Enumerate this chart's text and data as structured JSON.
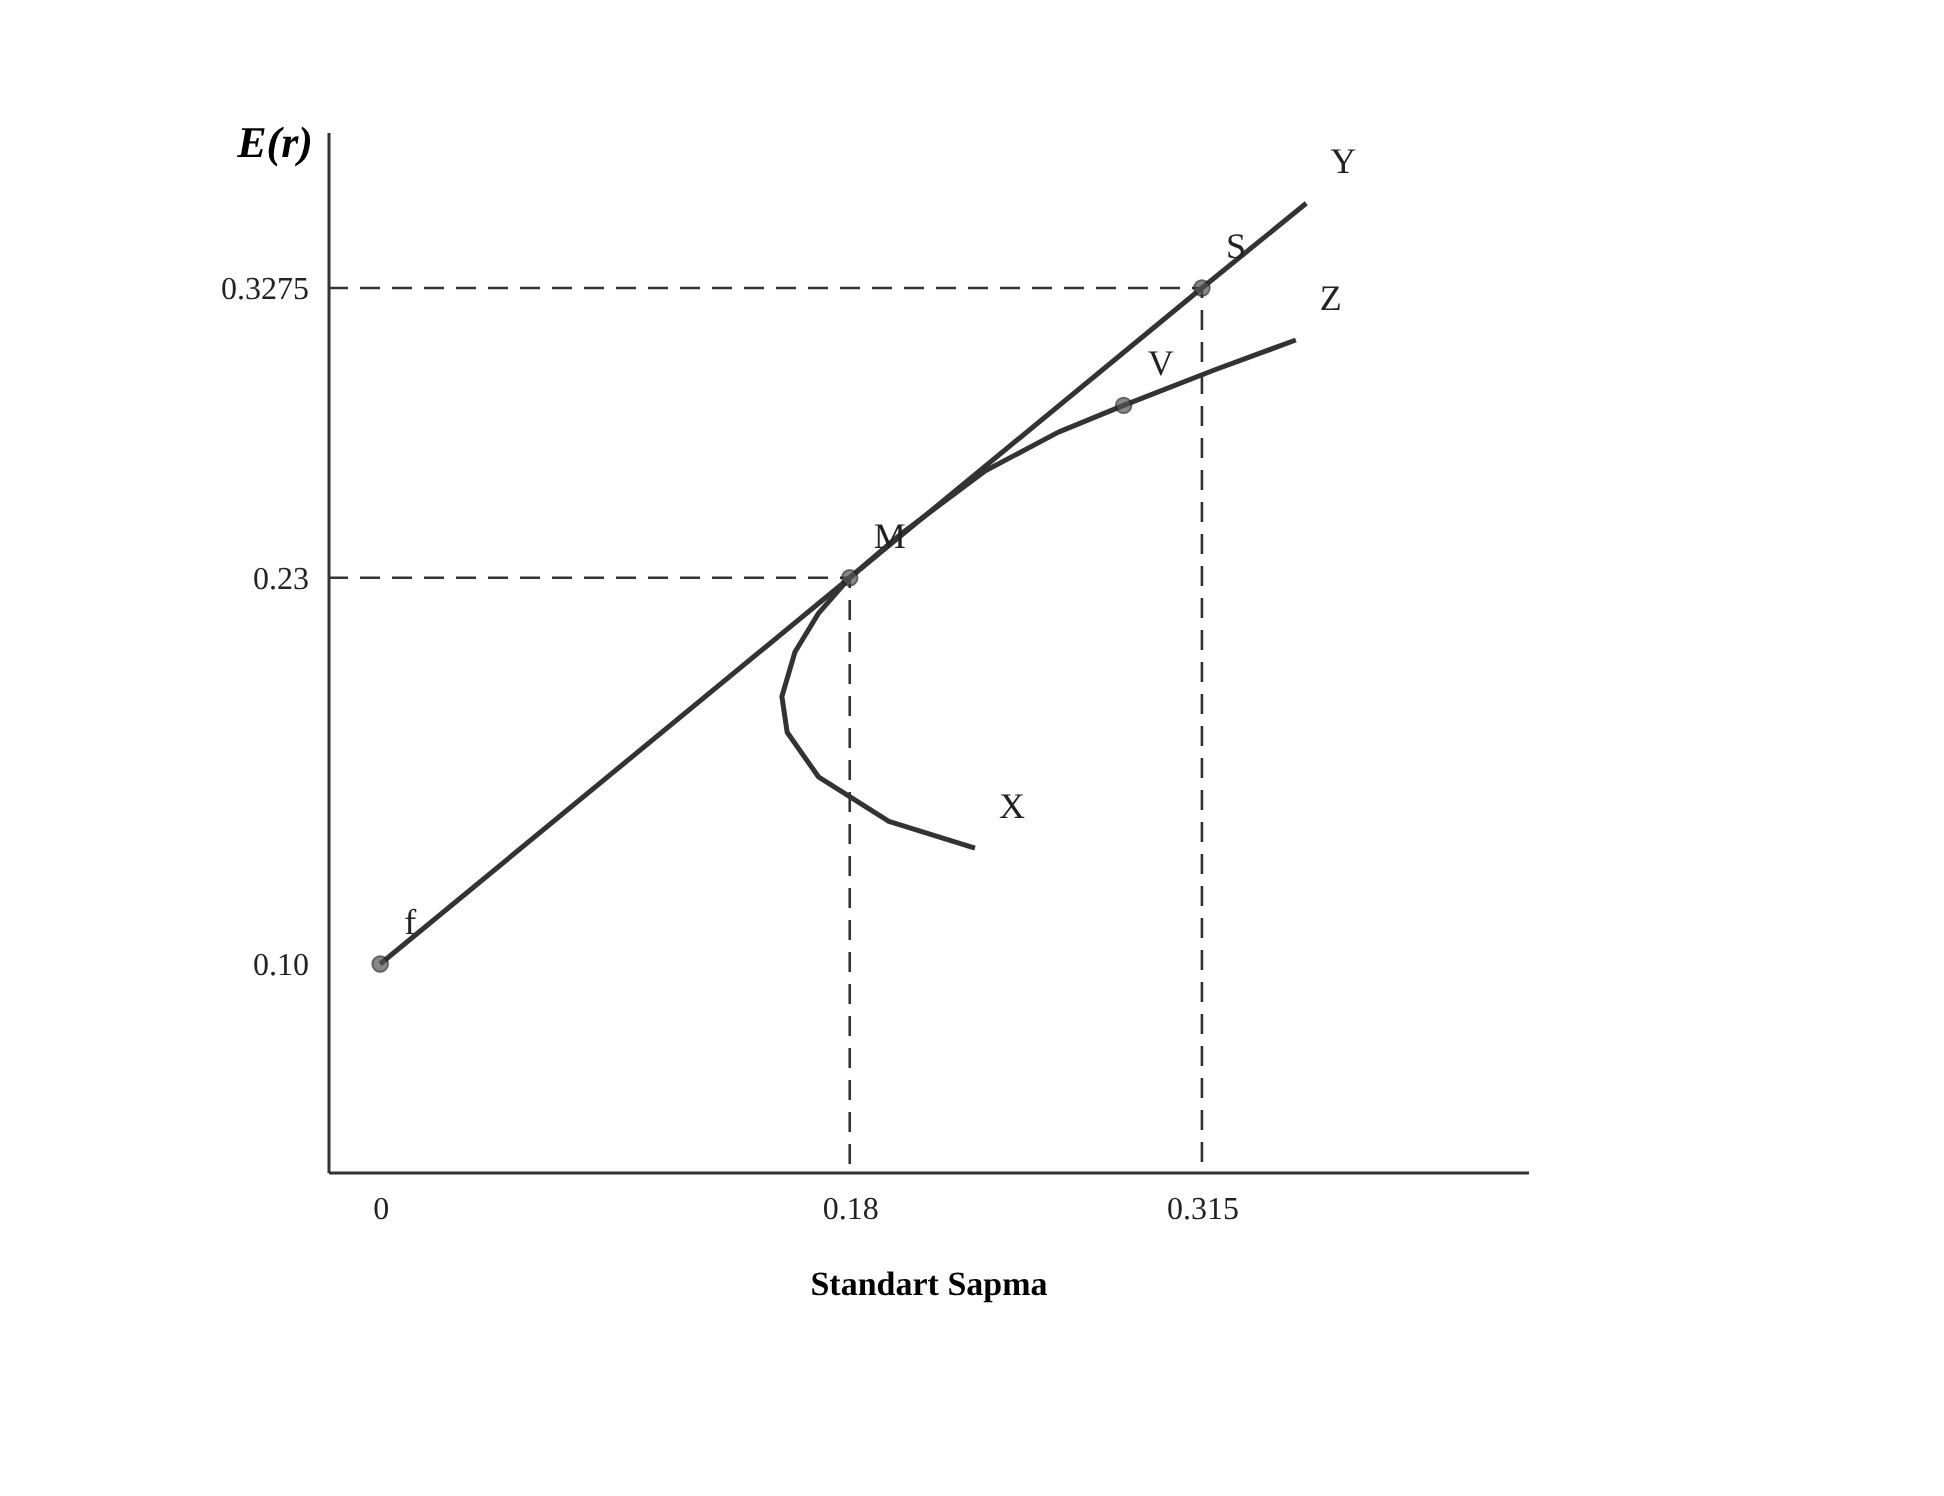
{
  "chart_data": {
    "type": "line",
    "xlabel": "Standart Sapma",
    "ylabel": "E(r)",
    "xlim": [
      -0.02,
      0.44
    ],
    "ylim": [
      0.03,
      0.38
    ],
    "xticks": [
      0,
      0.18,
      0.315
    ],
    "yticks": [
      {
        "value": 0.1,
        "label": "0.10"
      },
      0.23,
      0.3275
    ],
    "grid": false,
    "series": [
      {
        "color": "#333333",
        "line_style": "solid",
        "x": [
          0,
          0.18,
          0.315,
          0.355
        ],
        "values": [
          0.1,
          0.23,
          0.3275,
          0.356
        ]
      },
      {
        "color": "#333333",
        "line_style": "solid",
        "x": [
          0.228,
          0.195,
          0.168,
          0.156,
          0.154,
          0.159,
          0.168,
          0.18,
          0.2,
          0.232,
          0.26,
          0.285,
          0.32,
          0.351
        ],
        "values": [
          0.139,
          0.148,
          0.163,
          0.178,
          0.19,
          0.205,
          0.218,
          0.23,
          0.245,
          0.266,
          0.279,
          0.288,
          0.3,
          0.31
        ]
      },
      {
        "color": "#333333",
        "line_style": "dashed",
        "x": [
          -0.02,
          0.18,
          0.18
        ],
        "values": [
          0.23,
          0.23,
          0.03
        ]
      },
      {
        "color": "#333333",
        "line_style": "dashed",
        "x": [
          -0.02,
          0.315,
          0.315
        ],
        "values": [
          0.3275,
          0.3275,
          0.03
        ]
      },
      {
        "type": "scatter",
        "color": "#555555",
        "marker": "circle",
        "x": [
          0,
          0.18,
          0.315,
          0.285
        ],
        "values": [
          0.1,
          0.23,
          0.3275,
          0.288
        ]
      }
    ],
    "annotations": [
      {
        "text": "f",
        "x": 0,
        "y": 0.1
      },
      {
        "text": "M",
        "x": 0.18,
        "y": 0.23
      },
      {
        "text": "S",
        "x": 0.315,
        "y": 0.3275
      },
      {
        "text": "V",
        "x": 0.285,
        "y": 0.288
      },
      {
        "text": "X",
        "x": 0.228,
        "y": 0.139
      },
      {
        "text": "Y",
        "x": 0.355,
        "y": 0.356
      },
      {
        "text": "Z",
        "x": 0.351,
        "y": 0.31
      }
    ]
  }
}
